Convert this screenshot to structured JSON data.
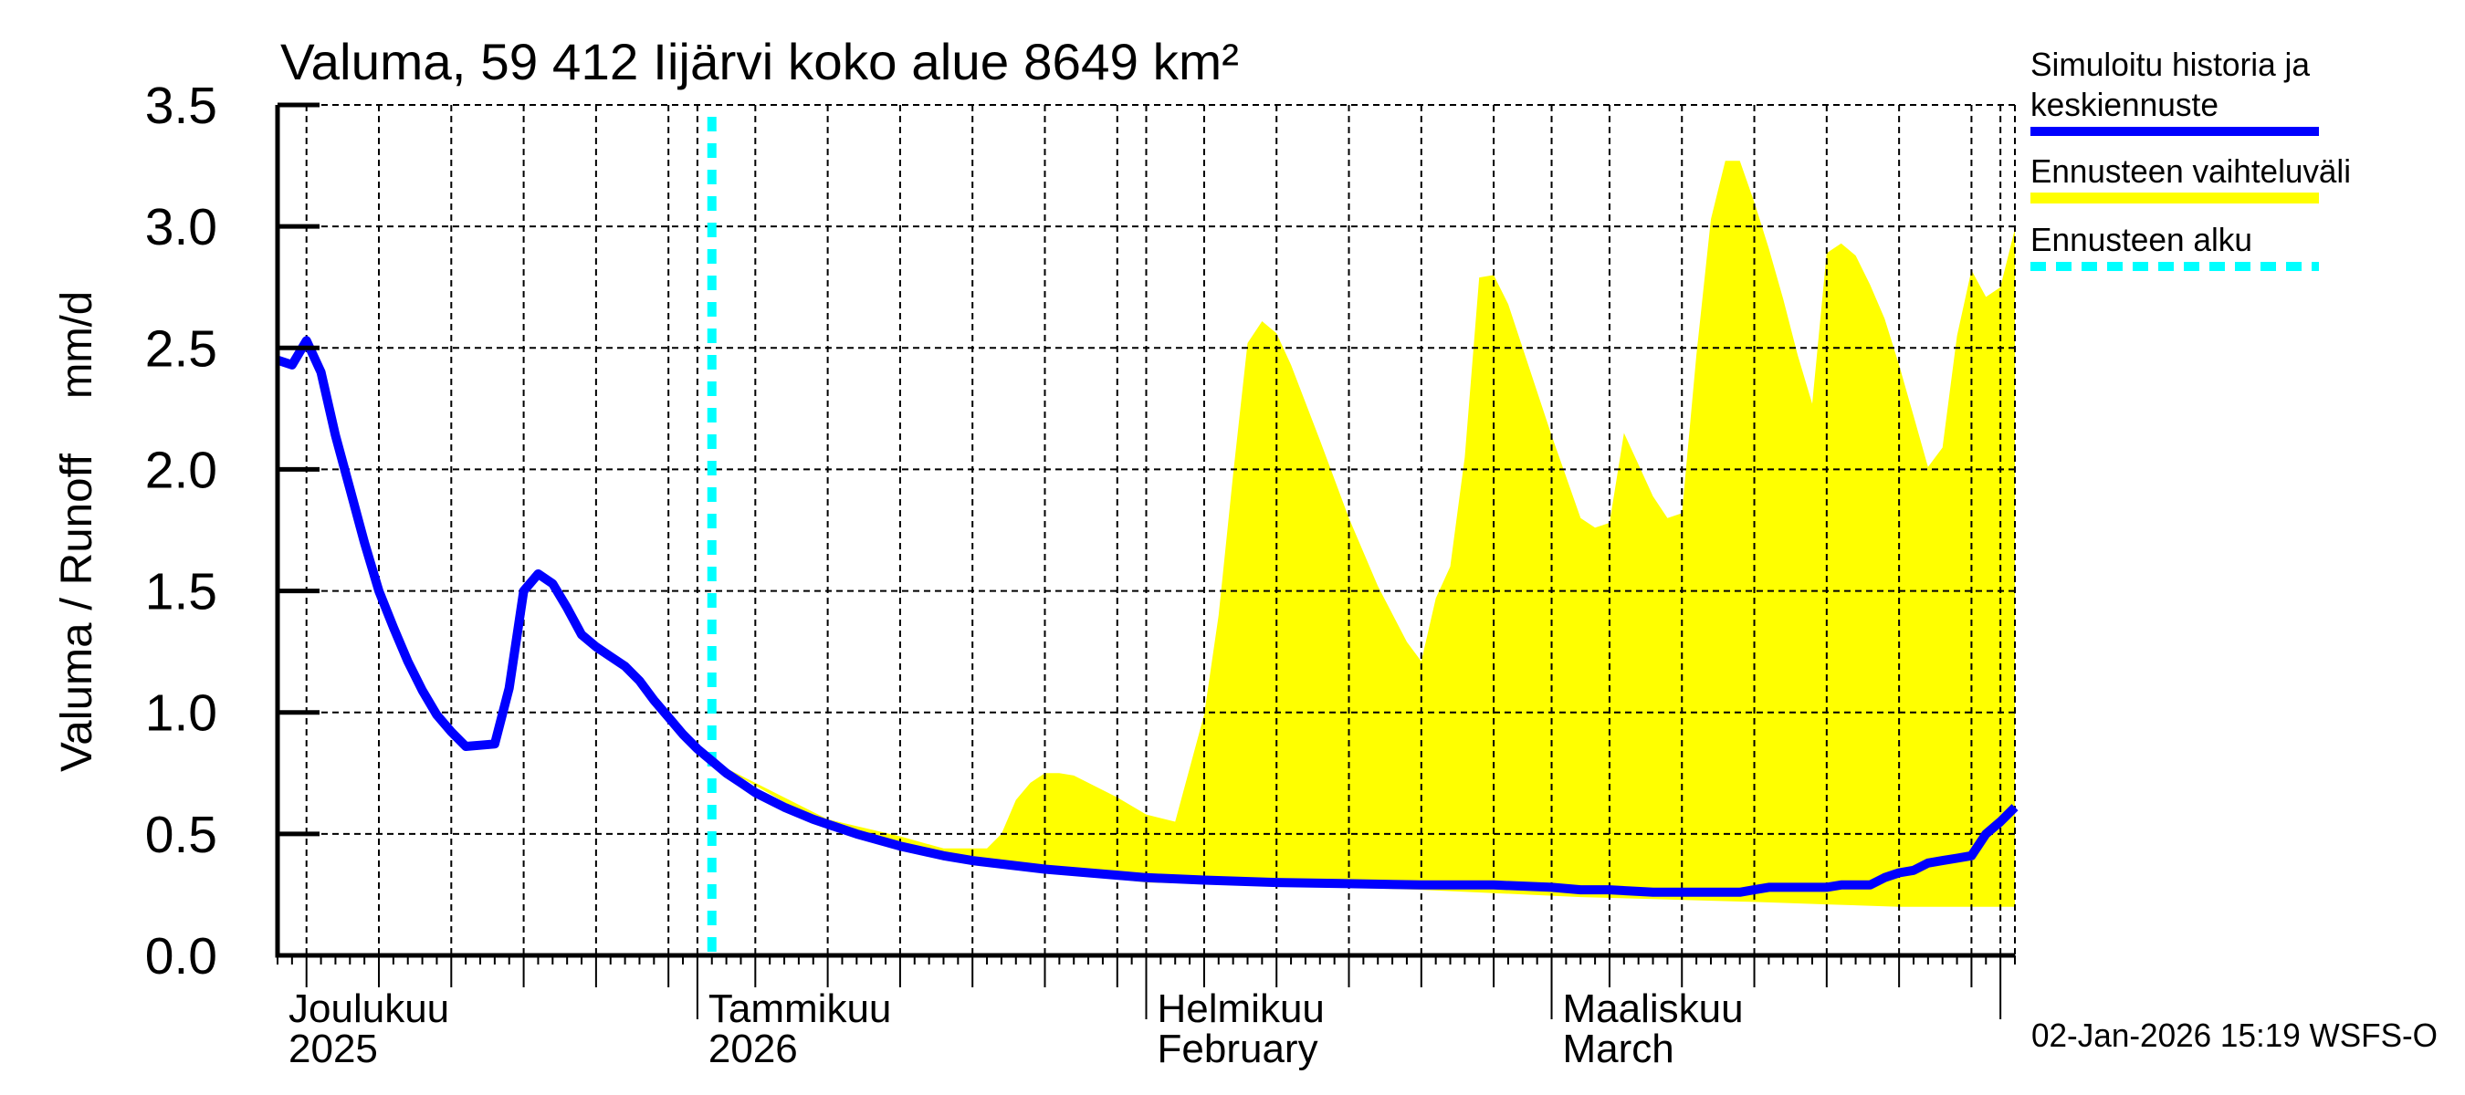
{
  "chart_data": {
    "type": "line",
    "title": "Valuma, 59 412 Iijärvi koko alue 8649 km²",
    "ylabel": "Valuma / Runoff",
    "yunit": "mm/d",
    "ylim": [
      0,
      3.5
    ],
    "yticks": [
      "0.0",
      "0.5",
      "1.0",
      "1.5",
      "2.0",
      "2.5",
      "3.0",
      "3.5"
    ],
    "xlim": [
      "2025-12-03",
      "2026-04-02"
    ],
    "grid": true,
    "legend_position": "right",
    "month_labels": [
      {
        "month": "2025-12",
        "label": "Joulukuu",
        "sub": "2025"
      },
      {
        "month": "2026-01",
        "label": "Tammikuu",
        "sub": "2026"
      },
      {
        "month": "2026-02",
        "label": "Helmikuu",
        "sub": "February"
      },
      {
        "month": "2026-03",
        "label": "Maaliskuu",
        "sub": "March"
      }
    ],
    "forecast_start": "2026-01-02",
    "series": [
      {
        "name": "Simuloitu historia ja keskiennuste",
        "color": "#0000ff",
        "points": [
          [
            "2025-12-03",
            2.45
          ],
          [
            "2025-12-04",
            2.43
          ],
          [
            "2025-12-05",
            2.53
          ],
          [
            "2025-12-06",
            2.4
          ],
          [
            "2025-12-07",
            2.14
          ],
          [
            "2025-12-08",
            1.92
          ],
          [
            "2025-12-09",
            1.7
          ],
          [
            "2025-12-10",
            1.5
          ],
          [
            "2025-12-11",
            1.35
          ],
          [
            "2025-12-12",
            1.21
          ],
          [
            "2025-12-13",
            1.09
          ],
          [
            "2025-12-14",
            0.99
          ],
          [
            "2025-12-15",
            0.92
          ],
          [
            "2025-12-16",
            0.86
          ],
          [
            "2025-12-17",
            0.865
          ],
          [
            "2025-12-18",
            0.87
          ],
          [
            "2025-12-19",
            1.1
          ],
          [
            "2025-12-20",
            1.5
          ],
          [
            "2025-12-21",
            1.57
          ],
          [
            "2025-12-22",
            1.53
          ],
          [
            "2025-12-23",
            1.43
          ],
          [
            "2025-12-24",
            1.32
          ],
          [
            "2025-12-25",
            1.27
          ],
          [
            "2025-12-26",
            1.23
          ],
          [
            "2025-12-27",
            1.19
          ],
          [
            "2025-12-28",
            1.13
          ],
          [
            "2025-12-29",
            1.05
          ],
          [
            "2025-12-30",
            0.98
          ],
          [
            "2025-12-31",
            0.91
          ],
          [
            "2026-01-01",
            0.85
          ],
          [
            "2026-01-02",
            0.8
          ],
          [
            "2026-01-03",
            0.75
          ],
          [
            "2026-01-04",
            0.71
          ],
          [
            "2026-01-05",
            0.67
          ],
          [
            "2026-01-06",
            0.64
          ],
          [
            "2026-01-07",
            0.61
          ],
          [
            "2026-01-08",
            0.585
          ],
          [
            "2026-01-09",
            0.56
          ],
          [
            "2026-01-10",
            0.54
          ],
          [
            "2026-01-12",
            0.5
          ],
          [
            "2026-01-15",
            0.45
          ],
          [
            "2026-01-18",
            0.41
          ],
          [
            "2026-01-20",
            0.39
          ],
          [
            "2026-01-25",
            0.355
          ],
          [
            "2026-01-30",
            0.33
          ],
          [
            "2026-02-01",
            0.32
          ],
          [
            "2026-02-05",
            0.31
          ],
          [
            "2026-02-10",
            0.3
          ],
          [
            "2026-02-15",
            0.295
          ],
          [
            "2026-02-20",
            0.29
          ],
          [
            "2026-02-25",
            0.29
          ],
          [
            "2026-03-01",
            0.28
          ],
          [
            "2026-03-03",
            0.27
          ],
          [
            "2026-03-05",
            0.27
          ],
          [
            "2026-03-08",
            0.26
          ],
          [
            "2026-03-12",
            0.26
          ],
          [
            "2026-03-14",
            0.26
          ],
          [
            "2026-03-15",
            0.27
          ],
          [
            "2026-03-16",
            0.28
          ],
          [
            "2026-03-18",
            0.28
          ],
          [
            "2026-03-20",
            0.28
          ],
          [
            "2026-03-21",
            0.29
          ],
          [
            "2026-03-23",
            0.29
          ],
          [
            "2026-03-24",
            0.32
          ],
          [
            "2026-03-25",
            0.34
          ],
          [
            "2026-03-26",
            0.35
          ],
          [
            "2026-03-27",
            0.38
          ],
          [
            "2026-03-28",
            0.39
          ],
          [
            "2026-03-29",
            0.4
          ],
          [
            "2026-03-30",
            0.41
          ],
          [
            "2026-03-31",
            0.5
          ],
          [
            "2026-04-01",
            0.55
          ],
          [
            "2026-04-02",
            0.61
          ]
        ]
      }
    ],
    "band": {
      "name": "Ennusteen vaihteluväli",
      "color": "#ffff00",
      "upper": [
        [
          "2026-01-02",
          0.8
        ],
        [
          "2026-01-10",
          0.56
        ],
        [
          "2026-01-15",
          0.49
        ],
        [
          "2026-01-18",
          0.44
        ],
        [
          "2026-01-21",
          0.44
        ],
        [
          "2026-01-22",
          0.5
        ],
        [
          "2026-01-23",
          0.64
        ],
        [
          "2026-01-24",
          0.71
        ],
        [
          "2026-01-25",
          0.75
        ],
        [
          "2026-01-26",
          0.75
        ],
        [
          "2026-01-27",
          0.74
        ],
        [
          "2026-01-30",
          0.65
        ],
        [
          "2026-02-01",
          0.58
        ],
        [
          "2026-02-03",
          0.55
        ],
        [
          "2026-02-05",
          0.99
        ],
        [
          "2026-02-06",
          1.4
        ],
        [
          "2026-02-07",
          1.98
        ],
        [
          "2026-02-08",
          2.52
        ],
        [
          "2026-02-09",
          2.61
        ],
        [
          "2026-02-10",
          2.56
        ],
        [
          "2026-02-11",
          2.43
        ],
        [
          "2026-02-13",
          2.12
        ],
        [
          "2026-02-15",
          1.8
        ],
        [
          "2026-02-17",
          1.52
        ],
        [
          "2026-02-19",
          1.29
        ],
        [
          "2026-02-20",
          1.21
        ],
        [
          "2026-02-21",
          1.47
        ],
        [
          "2026-02-22",
          1.6
        ],
        [
          "2026-02-23",
          2.05
        ],
        [
          "2026-02-24",
          2.79
        ],
        [
          "2026-02-25",
          2.8
        ],
        [
          "2026-02-26",
          2.68
        ],
        [
          "2026-02-27",
          2.5
        ],
        [
          "2026-03-01",
          2.14
        ],
        [
          "2026-03-03",
          1.8
        ],
        [
          "2026-03-04",
          1.76
        ],
        [
          "2026-03-05",
          1.78
        ],
        [
          "2026-03-06",
          2.15
        ],
        [
          "2026-03-07",
          2.02
        ],
        [
          "2026-03-08",
          1.89
        ],
        [
          "2026-03-09",
          1.8
        ],
        [
          "2026-03-10",
          1.82
        ],
        [
          "2026-03-11",
          2.47
        ],
        [
          "2026-03-12",
          3.03
        ],
        [
          "2026-03-13",
          3.27
        ],
        [
          "2026-03-14",
          3.27
        ],
        [
          "2026-03-15",
          3.1
        ],
        [
          "2026-03-16",
          2.91
        ],
        [
          "2026-03-17",
          2.7
        ],
        [
          "2026-03-18",
          2.47
        ],
        [
          "2026-03-19",
          2.27
        ],
        [
          "2026-03-20",
          2.89
        ],
        [
          "2026-03-21",
          2.93
        ],
        [
          "2026-03-22",
          2.88
        ],
        [
          "2026-03-23",
          2.76
        ],
        [
          "2026-03-24",
          2.62
        ],
        [
          "2026-03-25",
          2.43
        ],
        [
          "2026-03-26",
          2.22
        ],
        [
          "2026-03-27",
          2.01
        ],
        [
          "2026-03-28",
          2.09
        ],
        [
          "2026-03-29",
          2.55
        ],
        [
          "2026-03-30",
          2.82
        ],
        [
          "2026-03-31",
          2.71
        ],
        [
          "2026-04-01",
          2.75
        ],
        [
          "2026-04-02",
          2.99
        ]
      ],
      "lower": [
        [
          "2026-01-02",
          0.8
        ],
        [
          "2026-01-10",
          0.53
        ],
        [
          "2026-01-20",
          0.38
        ],
        [
          "2026-02-01",
          0.3
        ],
        [
          "2026-02-20",
          0.27
        ],
        [
          "2026-03-03",
          0.24
        ],
        [
          "2026-03-15",
          0.22
        ],
        [
          "2026-03-20",
          0.21
        ],
        [
          "2026-03-25",
          0.2
        ],
        [
          "2026-04-02",
          0.2
        ]
      ]
    }
  },
  "legend": {
    "items": [
      {
        "label_line1": "Simuloitu historia ja",
        "label_line2": "keskiennuste",
        "color": "#0000ff",
        "style": "solid"
      },
      {
        "label": "Ennusteen vaihteluväli",
        "color": "#ffff00",
        "style": "solid"
      },
      {
        "label": "Ennusteen alku",
        "color": "#00ffff",
        "style": "dotted"
      }
    ]
  },
  "footer": {
    "timestamp": "02-Jan-2026 15:19 WSFS-O"
  }
}
